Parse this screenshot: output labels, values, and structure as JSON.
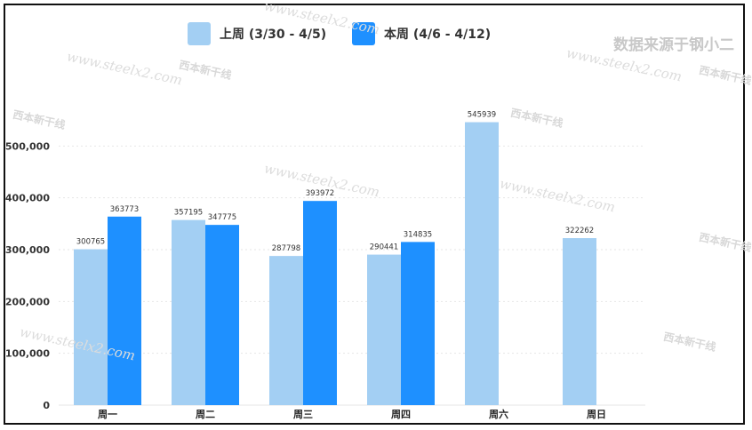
{
  "legend": {
    "prev": {
      "label": "上周 (3/30 - 4/5)",
      "color": "#a3cff3"
    },
    "curr": {
      "label": "本周 (4/6 - 4/12)",
      "color": "#1e90ff"
    }
  },
  "source_note": "数据来源于钢小二",
  "watermark": {
    "text": "www.steelx2.com",
    "logo": "西本新干线"
  },
  "chart_data": {
    "type": "bar",
    "categories": [
      "周一",
      "周二",
      "周三",
      "周四",
      "周六",
      "周日"
    ],
    "series": [
      {
        "name": "上周 (3/30 - 4/5)",
        "color": "#a3cff3",
        "values": [
          300765,
          357195,
          287798,
          290441,
          545939,
          322262
        ]
      },
      {
        "name": "本周 (4/6 - 4/12)",
        "color": "#1e90ff",
        "values": [
          363773,
          347775,
          393972,
          314835,
          null,
          null
        ]
      }
    ],
    "y_ticks": [
      "0",
      "100,000",
      "200,000",
      "300,000",
      "400,000",
      "500,000"
    ],
    "ylim": [
      0,
      500000
    ],
    "grid": true
  }
}
